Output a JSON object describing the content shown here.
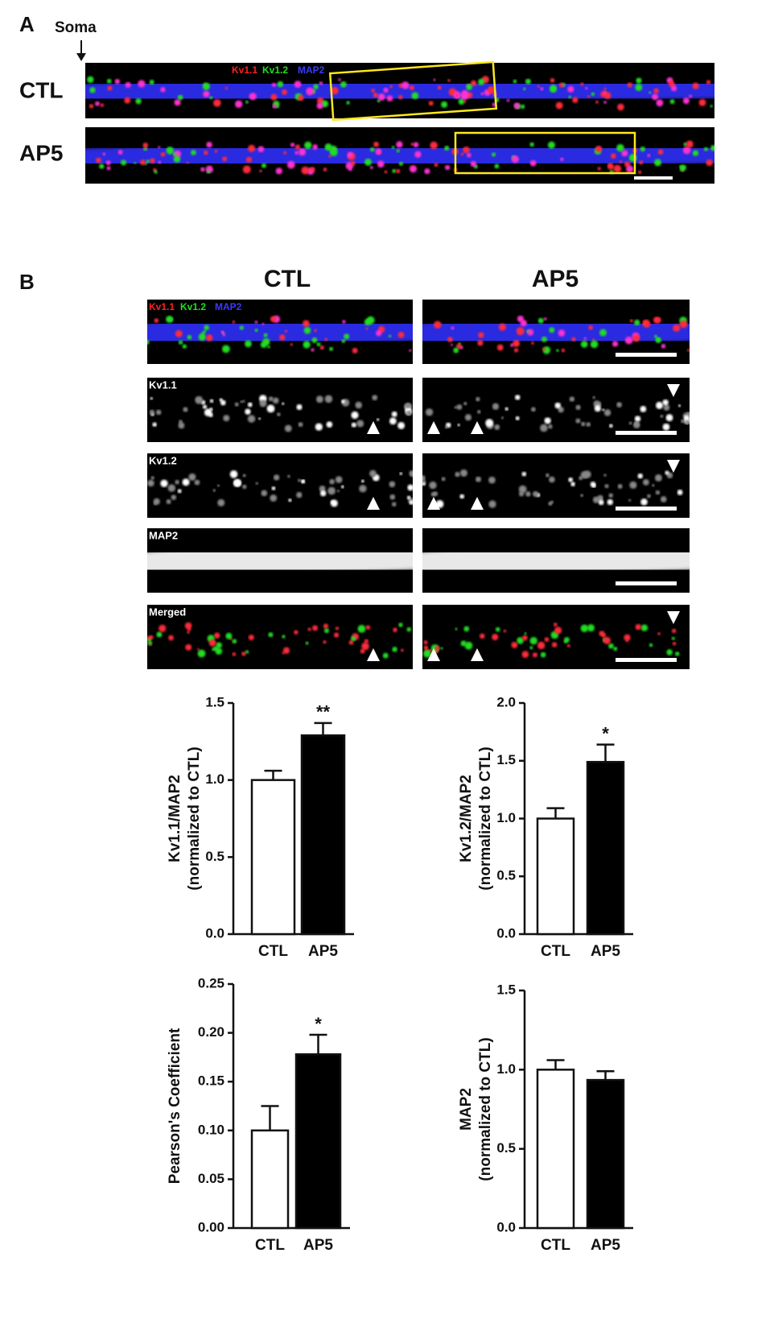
{
  "panel_a": {
    "label": "A",
    "soma_label": "Soma",
    "rows": [
      "CTL",
      "AP5"
    ],
    "channel_labels": [
      "Kv1.1",
      "Kv1.2",
      "MAP2"
    ]
  },
  "panel_b": {
    "label": "B",
    "columns": [
      "CTL",
      "AP5"
    ],
    "channel_labels": [
      "Kv1.1",
      "Kv1.2",
      "MAP2"
    ],
    "rows": [
      "Kv1.1",
      "Kv1.2",
      "MAP2",
      "Merged"
    ]
  },
  "chart_data": [
    {
      "type": "bar",
      "y_label": [
        "Kv1.1/MAP2",
        "(normalized to CTL)"
      ],
      "categories": [
        "CTL",
        "AP5"
      ],
      "values": [
        1.0,
        1.29
      ],
      "errors": [
        0.06,
        0.08
      ],
      "annotations": [
        null,
        "**"
      ],
      "colors": [
        "#ffffff",
        "#000000"
      ],
      "ylim": [
        0,
        1.5
      ],
      "yticks": [
        {
          "value": 0,
          "label": "0.0"
        },
        0.5,
        {
          "value": 1,
          "label": "1.0"
        },
        1.5
      ]
    },
    {
      "type": "bar",
      "y_label": [
        "Kv1.2/MAP2",
        "(normalized to CTL)"
      ],
      "categories": [
        "CTL",
        "AP5"
      ],
      "values": [
        1.0,
        1.49
      ],
      "errors": [
        0.09,
        0.15
      ],
      "annotations": [
        null,
        "*"
      ],
      "colors": [
        "#ffffff",
        "#000000"
      ],
      "ylim": [
        0,
        2
      ],
      "yticks": [
        {
          "value": 0,
          "label": "0.0"
        },
        0.5,
        {
          "value": 1,
          "label": "1.0"
        },
        1.5,
        {
          "value": 2,
          "label": "2.0"
        }
      ]
    },
    {
      "type": "bar",
      "y_label": [
        "Pearson's Coefficient"
      ],
      "categories": [
        "CTL",
        "AP5"
      ],
      "values": [
        0.1,
        0.178
      ],
      "errors": [
        0.025,
        0.02
      ],
      "annotations": [
        null,
        "*"
      ],
      "colors": [
        "#ffffff",
        "#000000"
      ],
      "ylim": [
        0,
        0.25
      ],
      "yticks": [
        {
          "value": 0,
          "label": "0.00"
        },
        0.05,
        {
          "value": 0.1,
          "label": "0.10"
        },
        0.15,
        {
          "value": 0.2,
          "label": "0.20"
        },
        0.25
      ]
    },
    {
      "type": "bar",
      "y_label": [
        "MAP2",
        "(normalized to CTL)"
      ],
      "categories": [
        "CTL",
        "AP5"
      ],
      "values": [
        1.0,
        0.935
      ],
      "errors": [
        0.06,
        0.055
      ],
      "annotations": [
        null,
        null
      ],
      "colors": [
        "#ffffff",
        "#000000"
      ],
      "ylim": [
        0,
        1.5
      ],
      "yticks": [
        {
          "value": 0,
          "label": "0.0"
        },
        0.5,
        {
          "value": 1,
          "label": "1.0"
        },
        1.5
      ]
    }
  ]
}
